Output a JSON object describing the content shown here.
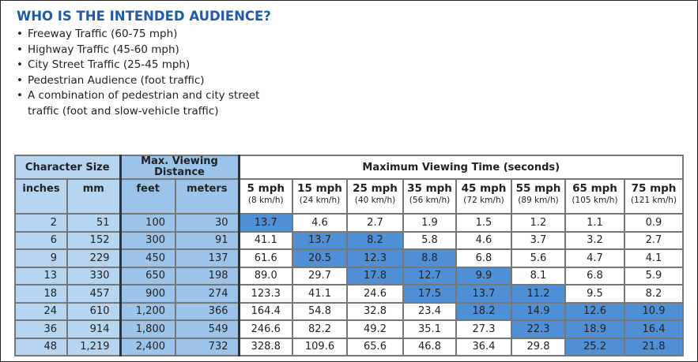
{
  "title": "WHO IS THE INTENDED AUDIENCE?",
  "bullets": [
    "Freeway Traffic (60-75 mph)",
    "Highway Traffic (45-60 mph)",
    "City Street Traffic (25-45 mph)",
    "Pedestrian Audience (foot traffic)",
    "A combination of pedestrian and city street traffic (foot and slow-vehicle traffic)"
  ],
  "table": {
    "group_headers": {
      "char_size": "Character Size",
      "distance": "Max. Viewing Distance",
      "time": "Maximum Viewing Time (seconds)"
    },
    "sub_headers": {
      "inches": "inches",
      "mm": "mm",
      "feet": "feet",
      "meters": "meters"
    },
    "speeds": [
      {
        "mph": "5 mph",
        "kmh": "(8 km/h)"
      },
      {
        "mph": "15 mph",
        "kmh": "(24 km/h)"
      },
      {
        "mph": "25 mph",
        "kmh": "(40 km/h)"
      },
      {
        "mph": "35 mph",
        "kmh": "(56 km/h)"
      },
      {
        "mph": "45 mph",
        "kmh": "(72 km/h)"
      },
      {
        "mph": "55 mph",
        "kmh": "(89 km/h)"
      },
      {
        "mph": "65 mph",
        "kmh": "(105 km/h)"
      },
      {
        "mph": "75 mph",
        "kmh": "(121 km/h)"
      }
    ],
    "highlight_color": "#4f8fd6",
    "rows": [
      {
        "inches": "2",
        "mm": "51",
        "feet": "100",
        "meters": "30",
        "times": [
          "13.7",
          "4.6",
          "2.7",
          "1.9",
          "1.5",
          "1.2",
          "1.1",
          "0.9"
        ],
        "highlight": [
          0
        ]
      },
      {
        "inches": "6",
        "mm": "152",
        "feet": "300",
        "meters": "91",
        "times": [
          "41.1",
          "13.7",
          "8.2",
          "5.8",
          "4.6",
          "3.7",
          "3.2",
          "2.7"
        ],
        "highlight": [
          1,
          2
        ]
      },
      {
        "inches": "9",
        "mm": "229",
        "feet": "450",
        "meters": "137",
        "times": [
          "61.6",
          "20.5",
          "12.3",
          "8.8",
          "6.8",
          "5.6",
          "4.7",
          "4.1"
        ],
        "highlight": [
          1,
          2,
          3
        ]
      },
      {
        "inches": "13",
        "mm": "330",
        "feet": "650",
        "meters": "198",
        "times": [
          "89.0",
          "29.7",
          "17.8",
          "12.7",
          "9.9",
          "8.1",
          "6.8",
          "5.9"
        ],
        "highlight": [
          2,
          3,
          4
        ]
      },
      {
        "inches": "18",
        "mm": "457",
        "feet": "900",
        "meters": "274",
        "times": [
          "123.3",
          "41.1",
          "24.6",
          "17.5",
          "13.7",
          "11.2",
          "9.5",
          "8.2"
        ],
        "highlight": [
          3,
          4,
          5
        ]
      },
      {
        "inches": "24",
        "mm": "610",
        "feet": "1,200",
        "meters": "366",
        "times": [
          "164.4",
          "54.8",
          "32.8",
          "23.4",
          "18.2",
          "14.9",
          "12.6",
          "10.9"
        ],
        "highlight": [
          4,
          5,
          6,
          7
        ]
      },
      {
        "inches": "36",
        "mm": "914",
        "feet": "1,800",
        "meters": "549",
        "times": [
          "246.6",
          "82.2",
          "49.2",
          "35.1",
          "27.3",
          "22.3",
          "18.9",
          "16.4"
        ],
        "highlight": [
          5,
          6,
          7
        ]
      },
      {
        "inches": "48",
        "mm": "1,219",
        "feet": "2,400",
        "meters": "732",
        "times": [
          "328.8",
          "109.6",
          "65.6",
          "46.8",
          "36.4",
          "29.8",
          "25.2",
          "21.8"
        ],
        "highlight": [
          6,
          7
        ]
      }
    ]
  }
}
